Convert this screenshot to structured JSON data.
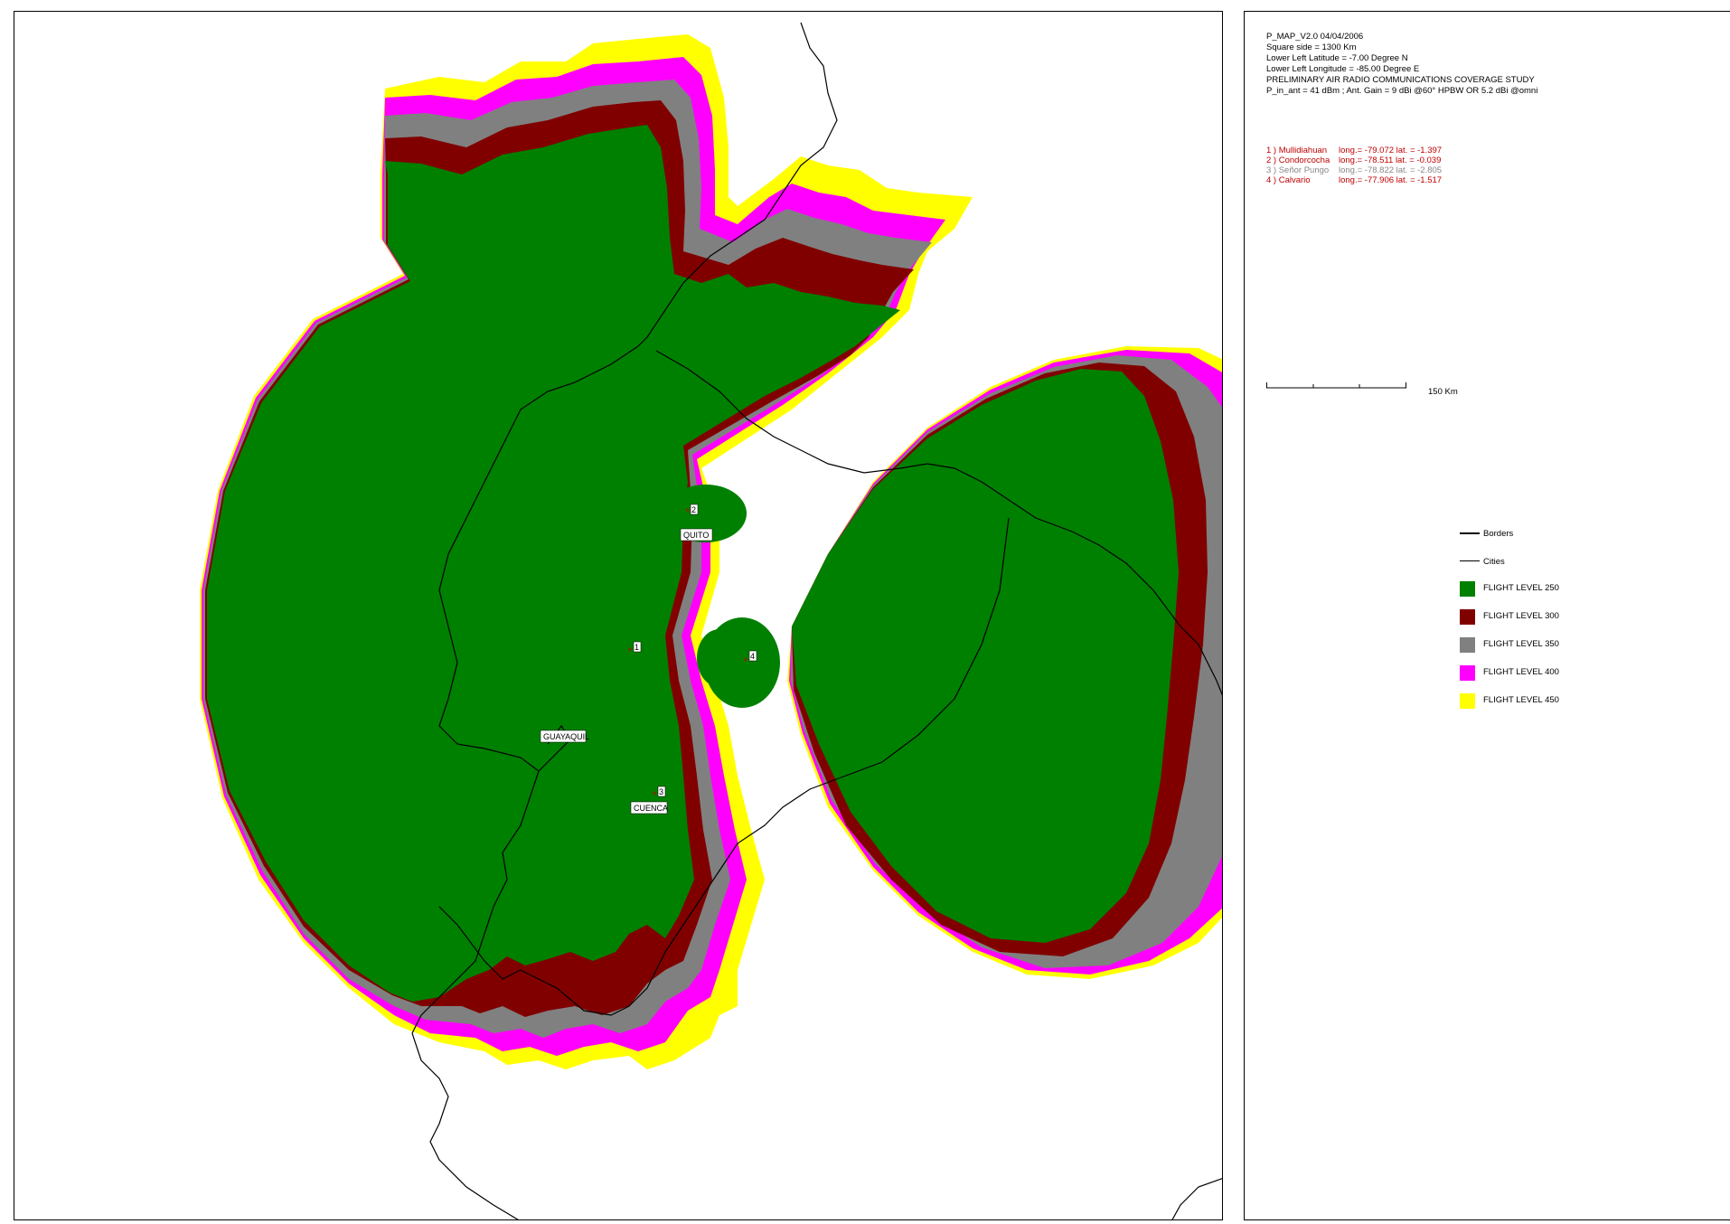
{
  "header": {
    "line1": "P_MAP_V2.0     04/04/2006",
    "line2": "Square side = 1300 Km",
    "line3": "Lower Left Latitude =   -7.00 Degree N",
    "line4": "Lower Left Longitude = -85.00 Degree E",
    "line5": "PRELIMINARY AIR RADIO COMMUNICATIONS COVERAGE STUDY",
    "line6": "P_in_ant  = 41 dBm ;  Ant. Gain = 9 dBi @60° HPBW  OR  5.2 dBi @omni"
  },
  "sites": [
    {
      "name": "1 ) Mullidiahuan",
      "coords": "long.= -79.072 lat. =  -1.397",
      "color": "#c00000"
    },
    {
      "name": "2 ) Condorcocha",
      "coords": "long.= -78.511 lat. =  -0.039",
      "color": "#c00000"
    },
    {
      "name": "3 ) Señor Pungo",
      "coords": "long.= -78.822 lat. =  -2.805",
      "color": "#888888"
    },
    {
      "name": "4 ) Calvario",
      "coords": "long.= -77.906 lat. =  -1.517",
      "color": "#c00000"
    }
  ],
  "scale": {
    "label": "150 Km"
  },
  "legend": [
    {
      "label": "Borders",
      "kind": "line"
    },
    {
      "label": "Cities",
      "kind": "thin-line"
    },
    {
      "label": "FLIGHT LEVEL 250",
      "kind": "swatch",
      "color": "#008000"
    },
    {
      "label": "FLIGHT LEVEL 300",
      "kind": "swatch",
      "color": "#800000"
    },
    {
      "label": "FLIGHT LEVEL 350",
      "kind": "swatch",
      "color": "#808080"
    },
    {
      "label": "FLIGHT LEVEL 400",
      "kind": "swatch",
      "color": "#ff00ff"
    },
    {
      "label": "FLIGHT LEVEL 450",
      "kind": "swatch",
      "color": "#ffff00"
    }
  ],
  "cities": [
    {
      "name": "QUITO"
    },
    {
      "name": "GUAYAQUIL"
    },
    {
      "name": "CUENCA"
    }
  ],
  "markers": [
    "1",
    "2",
    "3",
    "4"
  ]
}
